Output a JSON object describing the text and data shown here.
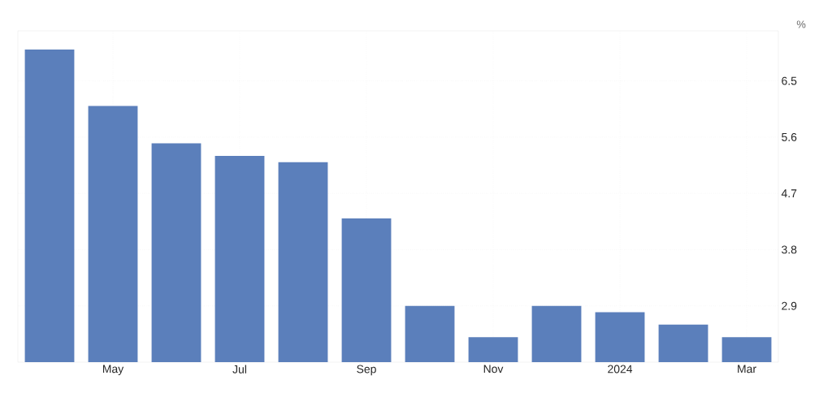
{
  "chart_data": {
    "type": "bar",
    "ylabel": "%",
    "categories": [
      null,
      "May",
      null,
      "Jul",
      null,
      "Sep",
      null,
      "Nov",
      null,
      "2024",
      null,
      "Mar"
    ],
    "values": [
      7.0,
      6.1,
      5.5,
      5.3,
      5.2,
      4.3,
      2.9,
      2.4,
      2.9,
      2.8,
      2.6,
      2.4
    ],
    "color": "#5b7fbb",
    "ylim": [
      2.0,
      7.3
    ],
    "yticks": [
      2.9,
      3.8,
      4.7,
      5.6,
      6.5
    ],
    "grid": true
  }
}
